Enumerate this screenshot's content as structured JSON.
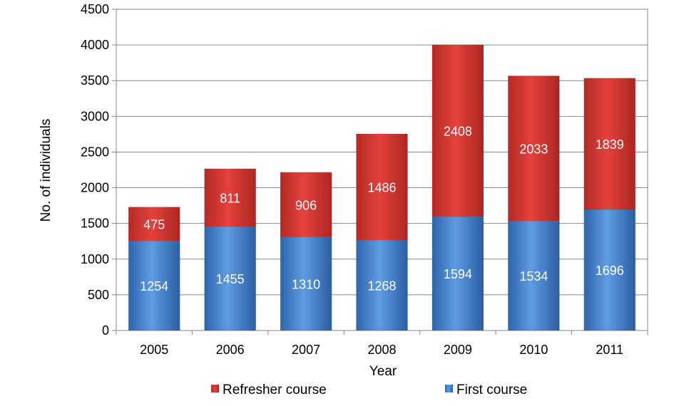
{
  "chart_data": {
    "type": "bar",
    "stacked": true,
    "title": "",
    "xlabel": "Year",
    "ylabel": "No. of individuals",
    "ylim": [
      0,
      4500
    ],
    "ytick_step": 500,
    "grid": true,
    "legend_position": "bottom",
    "categories": [
      "2005",
      "2006",
      "2007",
      "2008",
      "2009",
      "2010",
      "2011"
    ],
    "series": [
      {
        "name": "First course",
        "color": "#4a86d0",
        "values": [
          1254,
          1455,
          1310,
          1268,
          1594,
          1534,
          1696
        ]
      },
      {
        "name": "Refresher course",
        "color": "#d9312e",
        "values": [
          475,
          811,
          906,
          1486,
          2408,
          2033,
          1839
        ]
      }
    ],
    "legend_order": [
      1,
      0
    ]
  }
}
